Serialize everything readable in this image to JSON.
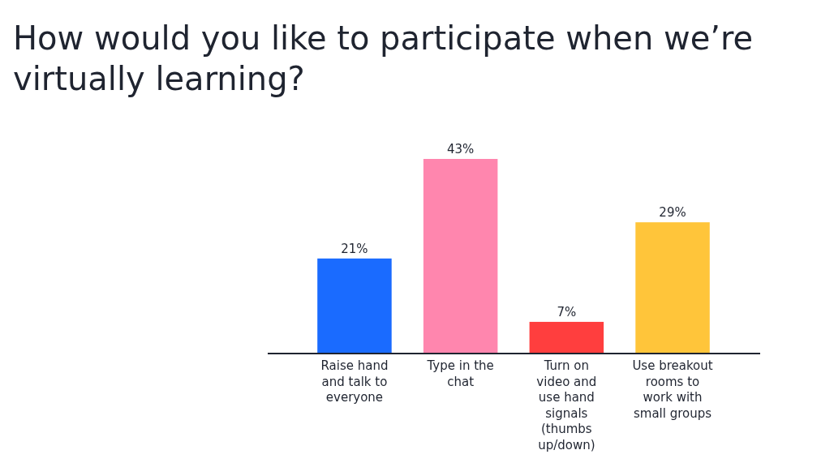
{
  "chart_data": {
    "type": "bar",
    "title": "How would you like to participate when we’re virtually learning?",
    "categories": [
      "Raise hand and talk to everyone",
      "Type in the chat",
      "Turn on video and use hand signals (thumbs up/down)",
      "Use breakout rooms to work with small groups"
    ],
    "values": [
      21,
      43,
      7,
      29
    ],
    "colors": [
      "#1a6bff",
      "#ff86ae",
      "#ff3e3e",
      "#ffc53a"
    ],
    "value_labels": [
      "21%",
      "43%",
      "7%",
      "29%"
    ]
  }
}
